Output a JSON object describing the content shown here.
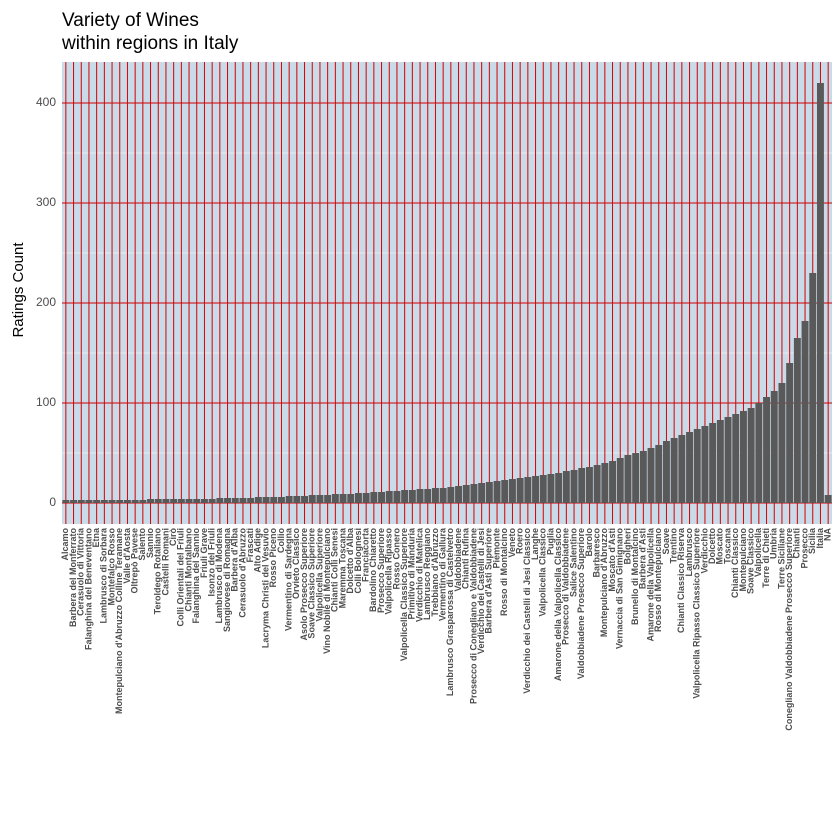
{
  "chart_data": {
    "type": "bar",
    "title": [
      "Variety of Wines",
      "within regions in Italy"
    ],
    "y_label": "Ratings Count",
    "categories": [
      "Alcamo",
      "Barbera del Monferrato",
      "Cerasuolo di Vittoria",
      "Falanghina del Beneventano",
      "Etna",
      "Lambrusco di Sorbara",
      "Montefalco Rosso",
      "Montepulciano d'Abruzzo Colline Teramane",
      "Valle d'Aosta",
      "Oltrepò Pavese",
      "Salento",
      "Sannio",
      "Teroldego Rotaliano",
      "Castelli Romani",
      "Cirò",
      "Colli Orientali del Friuli",
      "Chianti Montalbano",
      "Falanghina del Sannio",
      "Friuli Grave",
      "Isonzo del Friuli",
      "Lambrusco di Modena",
      "Sangiovese di Romagna",
      "Barbera d'Alba",
      "Cerasuolo d'Abruzzo",
      "Frascati",
      "Alto Adige",
      "Lacryma Christi del Vesuvio",
      "Rosso Piceno",
      "Collio",
      "Vermentino di Sardegna",
      "Orvieto Classico",
      "Asolo Prosecco Superiore",
      "Soave Classico Superiore",
      "Valpolicella Superiore",
      "Vino Nobile di Montepulciano",
      "Chianti Colli Senesi",
      "Maremma Toscana",
      "Dolcetto d'Alba",
      "Colli Bolognesi",
      "Franciacorta",
      "Bardolino Chiaretto",
      "Prosecco Superiore",
      "Valpolicella Ripasso",
      "Rosso Conero",
      "Valpolicella Classico Superiore",
      "Primitivo di Manduria",
      "Verdicchio di Matelica",
      "Lambrusco Reggiano",
      "Trebbiano d'Abruzzo",
      "Vermentino di Gallura",
      "Lambrusco Grasparossa di Castelvetro",
      "Valdobbiadene",
      "Chianti Rufina",
      "Prosecco di Conegliano e Valdobbiadene",
      "Verdicchio dei Castelli di Jesi",
      "Barbera d'Asti Superiore",
      "Piemonte",
      "Rosso di Montalcino",
      "Veneto",
      "Roero",
      "Verdicchio dei Castelli di Jesi Classico",
      "Langhe",
      "Valpolicella Classico",
      "Puglia",
      "Amarone della Valpolicella Classico",
      "Prosecco di Valdobbiadene",
      "Salice Salentino",
      "Valdobbiadene Prosecco Superiore",
      "Barolo",
      "Barbaresco",
      "Montepulciano d'Abruzzo",
      "Moscato d'Asti",
      "Vernaccia di San Gimignano",
      "Bolgheri",
      "Brunello di Montalcino",
      "Barbera d'Asti",
      "Amarone della Valpolicella",
      "Rosso di Montepulciano",
      "Soave",
      "Trentino",
      "Chianti Classico Riserva",
      "Lambrusco",
      "Valpolicella Ripasso Classico Superiore",
      "Verdicchio",
      "Dolcetto",
      "Moscato",
      "Toscana",
      "Chianti Classico",
      "Montepulciano",
      "Soave Classico",
      "Valpolicella",
      "Terre di Chieti",
      "Umbria",
      "Terre Siciliane",
      "Conegliano Valdobbiadene Prosecco Superiore",
      "Chianti",
      "Prosecco",
      "Sicilia",
      "Italia",
      "NA"
    ],
    "values": [
      3,
      3,
      3,
      3,
      3,
      3,
      3,
      3,
      3,
      3,
      3,
      4,
      4,
      4,
      4,
      4,
      4,
      4,
      4,
      4,
      5,
      5,
      5,
      5,
      5,
      6,
      6,
      6,
      6,
      7,
      7,
      7,
      8,
      8,
      8,
      9,
      9,
      9,
      10,
      10,
      11,
      11,
      12,
      12,
      13,
      13,
      14,
      14,
      15,
      15,
      16,
      17,
      18,
      19,
      20,
      21,
      22,
      23,
      24,
      25,
      26,
      27,
      28,
      29,
      30,
      32,
      33,
      35,
      36,
      38,
      40,
      42,
      45,
      48,
      50,
      52,
      55,
      58,
      62,
      65,
      68,
      71,
      74,
      77,
      80,
      83,
      86,
      89,
      92,
      95,
      100,
      106,
      112,
      120,
      140,
      165,
      182,
      230,
      420,
      8
    ],
    "color": "#595959",
    "ylim": [
      -21,
      441
    ],
    "yticks": [
      0,
      100,
      200,
      300,
      400
    ],
    "grid": true
  }
}
